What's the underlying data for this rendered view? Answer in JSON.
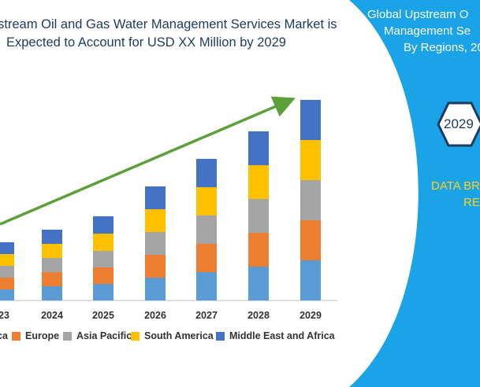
{
  "title": {
    "line1": "pstream Oil and Gas Water Management Services Market is",
    "line2": "Expected to Account for USD XX Million by 2029"
  },
  "panel": {
    "line1": "Global Upstream O",
    "line2": "Management Se",
    "line3": "By Regions, 20",
    "hex_year": "2029",
    "bridge1": "DATA BR",
    "bridge2": "RE"
  },
  "colors": {
    "panel_blue": "#1ba3e8",
    "arrow_green": "#5da03a",
    "axis_grey": "#bfbfbf"
  },
  "chart_data": {
    "type": "bar",
    "stacked": true,
    "categories": [
      "23",
      "2024",
      "2025",
      "2026",
      "2027",
      "2028",
      "2029"
    ],
    "series": [
      {
        "name": "ca",
        "color": "#5b9bd5",
        "values": [
          14,
          18,
          21,
          29,
          36,
          43,
          51
        ]
      },
      {
        "name": "Europe",
        "color": "#ed7d31",
        "values": [
          15,
          18,
          21,
          29,
          36,
          43,
          51
        ]
      },
      {
        "name": "Asia Pacific",
        "color": "#a5a5a5",
        "values": [
          15,
          18,
          21,
          29,
          36,
          43,
          51
        ]
      },
      {
        "name": "South America",
        "color": "#ffc000",
        "values": [
          15,
          18,
          22,
          29,
          36,
          43,
          51
        ]
      },
      {
        "name": "Middle East and Africa",
        "color": "#4472c4",
        "values": [
          15,
          18,
          22,
          29,
          36,
          43,
          51
        ]
      }
    ],
    "ylim": [
      0,
      260
    ],
    "trend_arrow": true,
    "legend_position": "bottom"
  }
}
